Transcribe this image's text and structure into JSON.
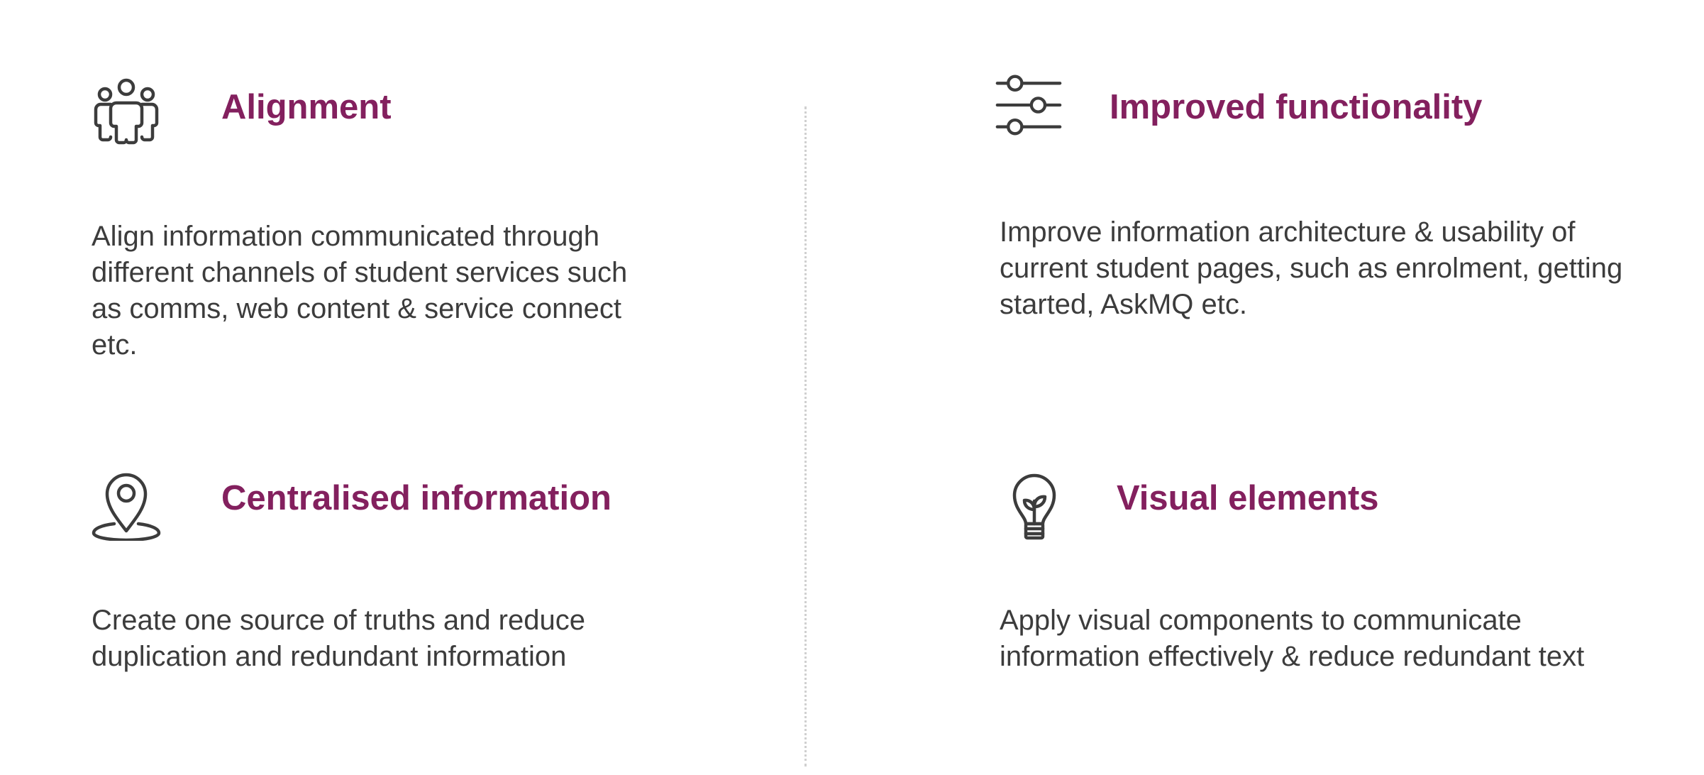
{
  "colors": {
    "heading": "#83205e",
    "body_text": "#3c3c3c",
    "icon_stroke": "#3c3c3c",
    "divider": "#d0d0d0",
    "background": "#ffffff"
  },
  "features": [
    {
      "icon": "people-group-icon",
      "title": "Alignment",
      "description": "Align information communicated through different channels of student services such as comms, web content & service connect etc."
    },
    {
      "icon": "sliders-icon",
      "title": "Improved functionality",
      "description": "Improve information architecture & usability of current student pages, such as enrolment, getting started, AskMQ etc."
    },
    {
      "icon": "location-pin-icon",
      "title": "Centralised information",
      "description": "Create one source of truths and reduce duplication and redundant information"
    },
    {
      "icon": "lightbulb-icon",
      "title": "Visual elements",
      "description": "Apply visual components to communicate information effectively & reduce redundant text"
    }
  ]
}
